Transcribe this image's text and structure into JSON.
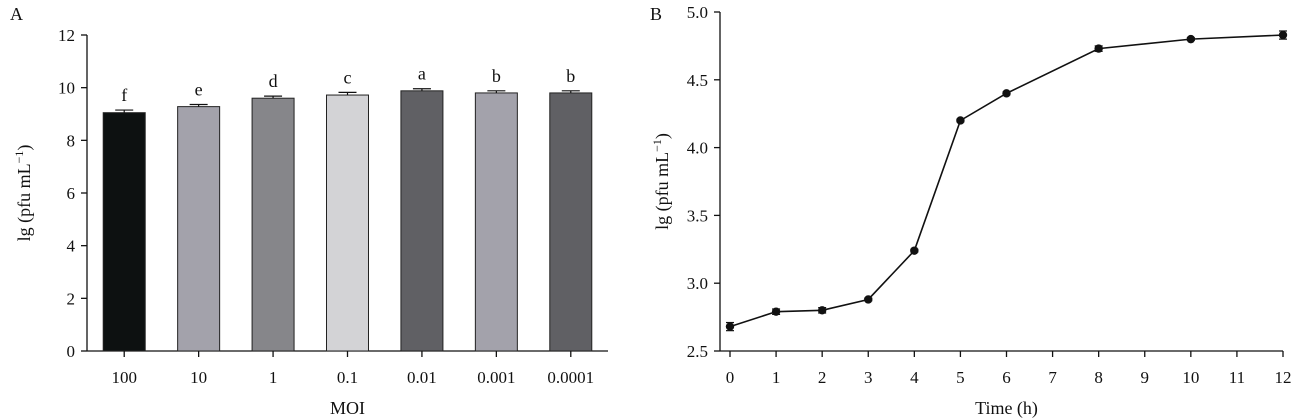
{
  "chart_data": [
    {
      "panel": "A",
      "type": "bar",
      "xlabel": "MOI",
      "ylabel": "lg (pfu mL",
      "ylabel_sup": "−1",
      "ylabel_close": ")",
      "ylim": [
        0,
        12
      ],
      "yticks": [
        "0",
        "2",
        "4",
        "6",
        "8",
        "10",
        "12"
      ],
      "categories": [
        "100",
        "10",
        "1",
        "0.1",
        "0.01",
        "0.001",
        "0.0001"
      ],
      "values": [
        9.05,
        9.28,
        9.6,
        9.72,
        9.88,
        9.8,
        9.8
      ],
      "errors": [
        0.1,
        0.08,
        0.08,
        0.1,
        0.08,
        0.08,
        0.08
      ],
      "letters": [
        "f",
        "e",
        "d",
        "c",
        "a",
        "b",
        "b"
      ],
      "colors": [
        "#0d1111",
        "#a3a2ab",
        "#86868a",
        "#d3d3d6",
        "#606064",
        "#a3a2ab",
        "#606064"
      ]
    },
    {
      "panel": "B",
      "type": "line",
      "xlabel": "Time (h)",
      "ylabel": "lg (pfu mL",
      "ylabel_sup": "−1",
      "ylabel_close": ")",
      "ylim": [
        2.5,
        5.0
      ],
      "xlim": [
        0,
        12
      ],
      "yticks": [
        "2.5",
        "3.0",
        "3.5",
        "4.0",
        "4.5",
        "5.0"
      ],
      "xticks": [
        "0",
        "1",
        "2",
        "3",
        "4",
        "5",
        "6",
        "7",
        "8",
        "9",
        "10",
        "11",
        "12"
      ],
      "x": [
        0,
        1,
        2,
        3,
        4,
        5,
        6,
        8,
        10,
        12
      ],
      "y": [
        2.68,
        2.79,
        2.8,
        2.88,
        3.24,
        4.2,
        4.4,
        4.73,
        4.8,
        4.83
      ],
      "errors": [
        0.03,
        0.02,
        0.02,
        0.01,
        0.01,
        0.01,
        0.01,
        0.02,
        0.01,
        0.03
      ]
    }
  ]
}
